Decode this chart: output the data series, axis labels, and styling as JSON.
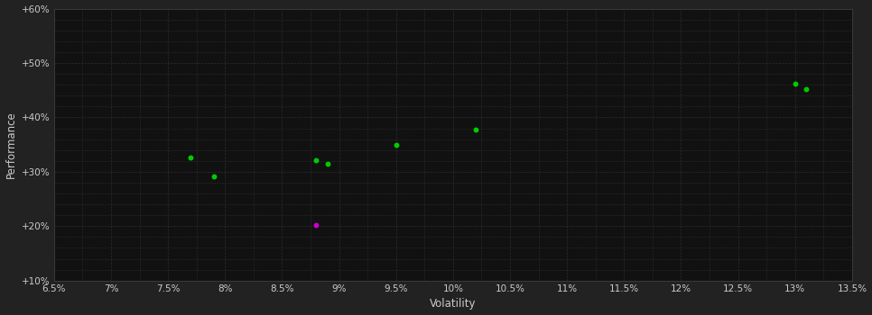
{
  "background_color": "#222222",
  "plot_bg_color": "#111111",
  "grid_color": "#2d2d2d",
  "grid_style": "--",
  "xlabel": "Volatility",
  "ylabel": "Performance",
  "xlabel_color": "#cccccc",
  "ylabel_color": "#cccccc",
  "tick_color": "#cccccc",
  "xlim": [
    0.065,
    0.135
  ],
  "ylim": [
    0.1,
    0.6
  ],
  "xticks": [
    0.065,
    0.07,
    0.075,
    0.08,
    0.085,
    0.09,
    0.095,
    0.1,
    0.105,
    0.11,
    0.115,
    0.12,
    0.125,
    0.13,
    0.135
  ],
  "yticks": [
    0.1,
    0.2,
    0.3,
    0.4,
    0.5,
    0.6
  ],
  "yticks_minor": [
    0.1,
    0.12,
    0.14,
    0.16,
    0.18,
    0.2,
    0.22,
    0.24,
    0.26,
    0.28,
    0.3,
    0.32,
    0.34,
    0.36,
    0.38,
    0.4,
    0.42,
    0.44,
    0.46,
    0.48,
    0.5,
    0.52,
    0.54,
    0.56,
    0.58,
    0.6
  ],
  "xtick_labels": [
    "6.5%",
    "7%",
    "7.5%",
    "8%",
    "8.5%",
    "9%",
    "9.5%",
    "10%",
    "10.5%",
    "11%",
    "11.5%",
    "12%",
    "12.5%",
    "13%",
    "13.5%"
  ],
  "ytick_labels": [
    "+10%",
    "+20%",
    "+30%",
    "+40%",
    "+50%",
    "+60%"
  ],
  "green_points": [
    [
      0.077,
      0.327
    ],
    [
      0.079,
      0.292
    ],
    [
      0.088,
      0.321
    ],
    [
      0.089,
      0.314
    ],
    [
      0.095,
      0.35
    ],
    [
      0.102,
      0.378
    ],
    [
      0.13,
      0.462
    ],
    [
      0.131,
      0.452
    ]
  ],
  "magenta_points": [
    [
      0.088,
      0.202
    ]
  ],
  "point_size": 18,
  "green_color": "#00cc00",
  "magenta_color": "#cc00cc",
  "figsize": [
    9.66,
    3.5
  ],
  "dpi": 100
}
